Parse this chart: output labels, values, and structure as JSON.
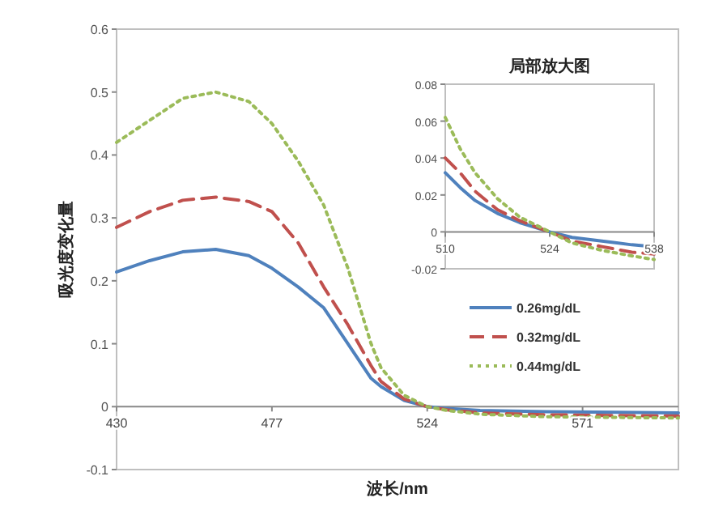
{
  "chart_data": [
    {
      "type": "line",
      "xlabel": "波长/nm",
      "ylabel": "吸光度变化量",
      "xlim": [
        430,
        600
      ],
      "xticks": [
        430,
        477,
        524,
        571
      ],
      "ylim": [
        -0.1,
        0.6
      ],
      "yticks": [
        -0.1,
        0,
        0.1,
        0.2,
        0.3,
        0.4,
        0.5,
        0.6
      ],
      "grid": false,
      "legend": "right",
      "marker": "none",
      "x": [
        430,
        440,
        450,
        460,
        470,
        477,
        485,
        492.7,
        500,
        507,
        510,
        517,
        524,
        530,
        540,
        560,
        600
      ],
      "series": [
        {
          "name": "0.26mg/dL",
          "color": "#4f81bd",
          "line_style": "solid",
          "values": [
            0.214,
            0.232,
            0.246,
            0.25,
            0.24,
            0.22,
            0.19,
            0.157,
            0.1,
            0.045,
            0.032,
            0.01,
            0,
            -0.003,
            -0.006,
            -0.008,
            -0.01
          ]
        },
        {
          "name": "0.32mg/dL",
          "color": "#c0504d",
          "line_style": "dashed",
          "values": [
            0.285,
            0.31,
            0.328,
            0.333,
            0.326,
            0.31,
            0.26,
            0.19,
            0.13,
            0.065,
            0.04,
            0.012,
            0,
            -0.005,
            -0.01,
            -0.013,
            -0.015
          ]
        },
        {
          "name": "0.44mg/dL",
          "color": "#9bbb59",
          "line_style": "dotted",
          "values": [
            0.42,
            0.455,
            0.49,
            0.5,
            0.485,
            0.45,
            0.39,
            0.32,
            0.22,
            0.1,
            0.062,
            0.018,
            0,
            -0.006,
            -0.012,
            -0.016,
            -0.018
          ]
        }
      ]
    },
    {
      "type": "line",
      "title": "局部放大图",
      "xlim": [
        510,
        538
      ],
      "xticks": [
        510,
        524,
        538
      ],
      "ylim": [
        -0.02,
        0.08
      ],
      "yticks": [
        -0.02,
        0,
        0.02,
        0.04,
        0.06,
        0.08
      ],
      "grid": false,
      "marker": "none",
      "x": [
        510,
        512,
        514,
        517,
        520,
        524,
        527,
        531,
        535,
        538
      ],
      "series": [
        {
          "color": "#4f81bd",
          "line_style": "solid",
          "values": [
            0.032,
            0.024,
            0.017,
            0.01,
            0.005,
            0,
            -0.003,
            -0.005,
            -0.007,
            -0.008
          ]
        },
        {
          "color": "#c0504d",
          "line_style": "dashed",
          "values": [
            0.04,
            0.032,
            0.022,
            0.012,
            0.006,
            0,
            -0.005,
            -0.008,
            -0.011,
            -0.012
          ]
        },
        {
          "color": "#9bbb59",
          "line_style": "dotted",
          "values": [
            0.062,
            0.045,
            0.032,
            0.018,
            0.008,
            0,
            -0.006,
            -0.01,
            -0.013,
            -0.015
          ]
        }
      ]
    }
  ]
}
